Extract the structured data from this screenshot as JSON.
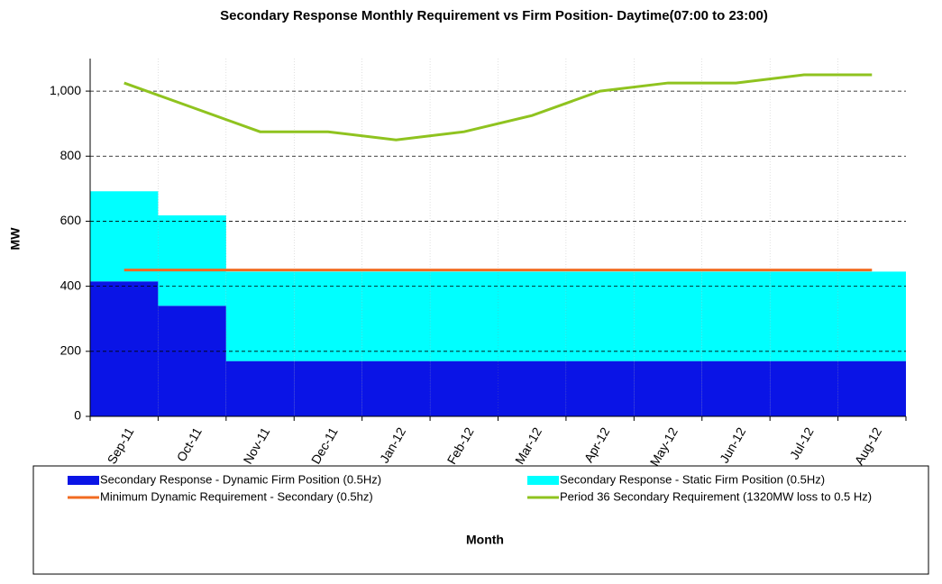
{
  "chart_data": {
    "type": "bar",
    "title": "Secondary Response Monthly Requirement vs Firm Position- Daytime(07:00 to 23:00)",
    "x_label": "Month",
    "y_label": "MW",
    "categories": [
      "Sep-11",
      "Oct-11",
      "Nov-11",
      "Dec-11",
      "Jan-12",
      "Feb-12",
      "Mar-12",
      "Apr-12",
      "May-12",
      "Jun-12",
      "Jul-12",
      "Aug-12"
    ],
    "series": [
      {
        "name": "Secondary Response - Dynamic Firm Position (0.5Hz)",
        "type": "bar",
        "color": "#0a14e6",
        "values": [
          415,
          340,
          170,
          170,
          170,
          170,
          170,
          170,
          170,
          170,
          170,
          170
        ]
      },
      {
        "name": "Secondary Response - Static Firm Position (0.5Hz)",
        "type": "bar",
        "color": "#00ffff",
        "values": [
          277,
          278,
          275,
          275,
          275,
          275,
          275,
          275,
          275,
          275,
          275,
          275
        ]
      },
      {
        "name": "Minimum Dynamic Requirement - Secondary (0.5hz)",
        "type": "line",
        "color": "#f26b21",
        "values": [
          450,
          450,
          450,
          450,
          450,
          450,
          450,
          450,
          450,
          450,
          450,
          450
        ]
      },
      {
        "name": "Period 36 Secondary Requirement (1320MW loss to 0.5 Hz)",
        "type": "line",
        "color": "#8fc31f",
        "values": [
          1025,
          950,
          875,
          875,
          850,
          875,
          925,
          1000,
          1025,
          1025,
          1050,
          1050
        ]
      }
    ],
    "ylim": [
      0,
      1100
    ],
    "yticks": [
      0,
      200,
      400,
      600,
      800,
      {
        "value": 1000,
        "label": "1,000"
      }
    ],
    "grid": true,
    "legend": "bottom"
  }
}
